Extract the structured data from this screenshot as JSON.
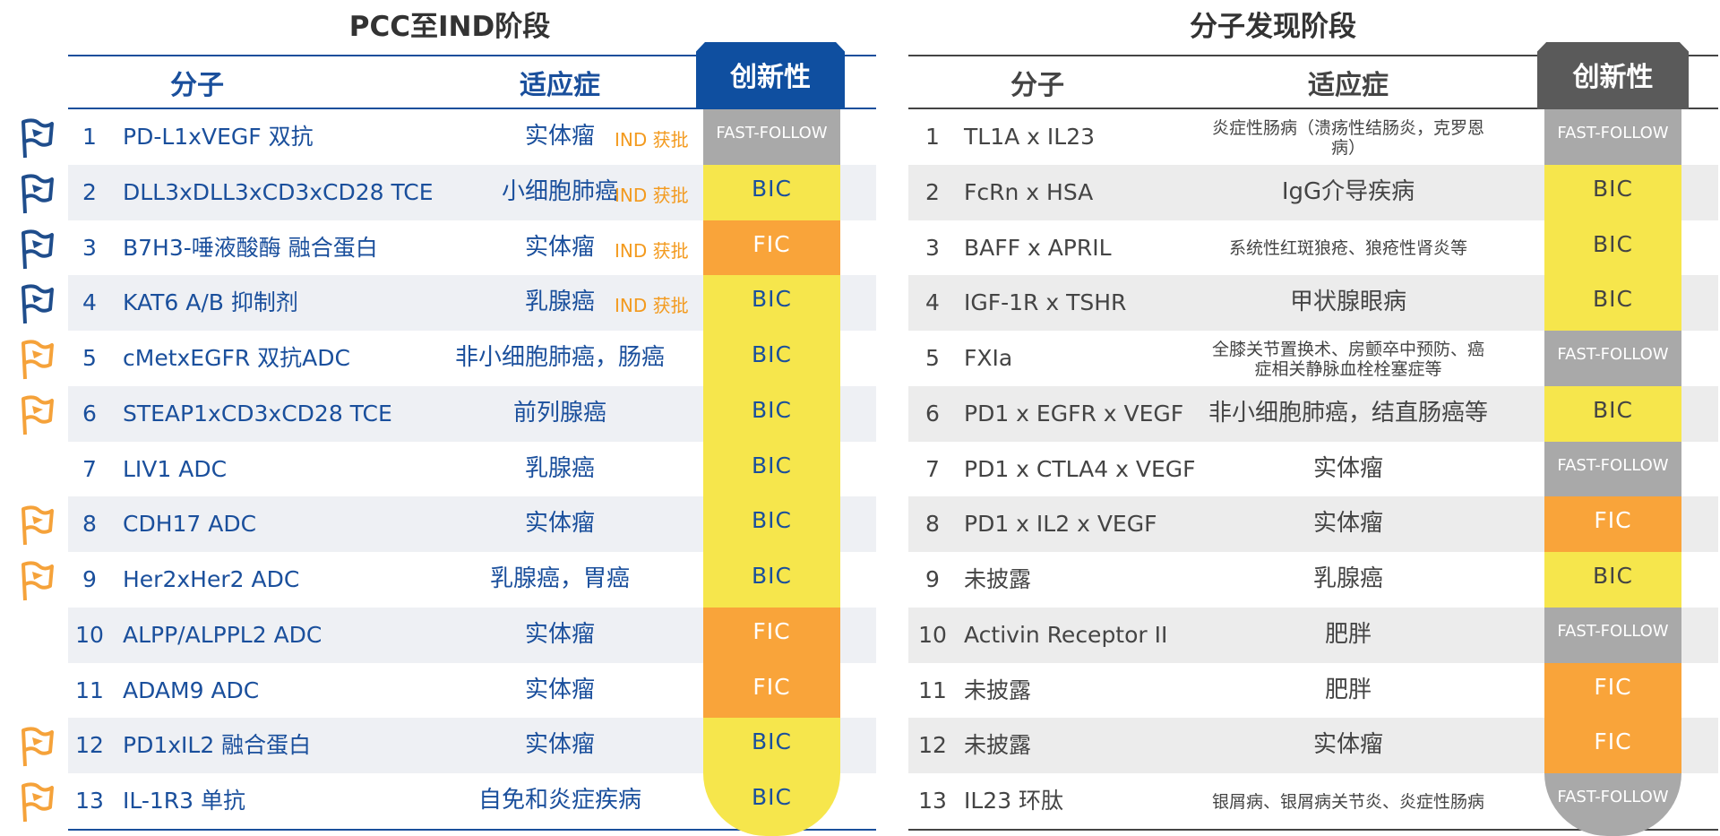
{
  "tables": [
    {
      "title": "PCC至IND阶段",
      "theme": "#1a4f9c",
      "tab": "#0f4fa0",
      "stripe": "#eef0f4",
      "headers": [
        "分子",
        "适应症",
        "创新性"
      ],
      "rows": [
        {
          "num": "1",
          "molecule": "PD-L1xVEGF 双抗",
          "indication": "实体瘤",
          "note": "IND 获批",
          "innovation": "FAST-FOLLOW",
          "innovation_color": "#a9a9a9",
          "flag": "#1f4d8c"
        },
        {
          "num": "2",
          "molecule": "DLL3xDLL3xCD3xCD28 TCE",
          "indication": "小细胞肺癌",
          "note": "IND 获批",
          "innovation": "BIC",
          "innovation_color": "#f6e64c",
          "flag": "#1f4d8c"
        },
        {
          "num": "3",
          "molecule": "B7H3-唾液酸酶 融合蛋白",
          "indication": "实体瘤",
          "note": "IND 获批",
          "innovation": "FIC",
          "innovation_color": "#f9a43a",
          "flag": "#1f4d8c"
        },
        {
          "num": "4",
          "molecule": "KAT6 A/B 抑制剂",
          "indication": "乳腺癌",
          "note": "IND 获批",
          "innovation": "BIC",
          "innovation_color": "#f6e64c",
          "flag": "#1f4d8c"
        },
        {
          "num": "5",
          "molecule": "cMetxEGFR 双抗ADC",
          "indication": "非小细胞肺癌，肠癌",
          "innovation": "BIC",
          "innovation_color": "#f6e64c",
          "flag": "#f5a23a"
        },
        {
          "num": "6",
          "molecule": "STEAP1xCD3xCD28 TCE",
          "indication": "前列腺癌",
          "innovation": "BIC",
          "innovation_color": "#f6e64c",
          "flag": "#f5a23a"
        },
        {
          "num": "7",
          "molecule": "LIV1 ADC",
          "indication": "乳腺癌",
          "innovation": "BIC",
          "innovation_color": "#f6e64c"
        },
        {
          "num": "8",
          "molecule": "CDH17 ADC",
          "indication": "实体瘤",
          "innovation": "BIC",
          "innovation_color": "#f6e64c",
          "flag": "#f5a23a"
        },
        {
          "num": "9",
          "molecule": "Her2xHer2 ADC",
          "indication": "乳腺癌，胃癌",
          "innovation": "BIC",
          "innovation_color": "#f6e64c",
          "flag": "#f5a23a"
        },
        {
          "num": "10",
          "molecule": "ALPP/ALPPL2 ADC",
          "indication": "实体瘤",
          "innovation": "FIC",
          "innovation_color": "#f9a43a"
        },
        {
          "num": "11",
          "molecule": "ADAM9 ADC",
          "indication": "实体瘤",
          "innovation": "FIC",
          "innovation_color": "#f9a43a"
        },
        {
          "num": "12",
          "molecule": "PD1xIL2 融合蛋白",
          "indication": "实体瘤",
          "innovation": "BIC",
          "innovation_color": "#f6e64c",
          "flag": "#f5a23a"
        },
        {
          "num": "13",
          "molecule": "IL-1R3 单抗",
          "indication": "自免和炎症疾病",
          "innovation": "BIC",
          "innovation_color": "#f6e64c",
          "flag": "#f5a23a"
        }
      ]
    },
    {
      "title": "分子发现阶段",
      "theme": "#444444",
      "tab": "#5a5a5a",
      "stripe": "#ececec",
      "headers": [
        "分子",
        "适应症",
        "创新性"
      ],
      "rows": [
        {
          "num": "1",
          "molecule": "TL1A x IL23",
          "indication": "炎症性肠病（溃疡性结肠炎，克罗恩病）",
          "innovation": "FAST-FOLLOW",
          "innovation_color": "#a9a9a9"
        },
        {
          "num": "2",
          "molecule": "FcRn x HSA",
          "indication": "IgG介导疾病",
          "innovation": "BIC",
          "innovation_color": "#f6e64c"
        },
        {
          "num": "3",
          "molecule": "BAFF x APRIL",
          "indication": "系统性红斑狼疮、狼疮性肾炎等",
          "innovation": "BIC",
          "innovation_color": "#f6e64c"
        },
        {
          "num": "4",
          "molecule": "IGF-1R x TSHR",
          "indication": "甲状腺眼病",
          "innovation": "BIC",
          "innovation_color": "#f6e64c"
        },
        {
          "num": "5",
          "molecule": "FXIa",
          "indication": "全膝关节置换术、房颤卒中预防、癌症相关静脉血栓栓塞症等",
          "innovation": "FAST-FOLLOW",
          "innovation_color": "#a9a9a9"
        },
        {
          "num": "6",
          "molecule": "PD1 x EGFR x VEGF",
          "indication": "非小细胞肺癌，结直肠癌等",
          "innovation": "BIC",
          "innovation_color": "#f6e64c"
        },
        {
          "num": "7",
          "molecule": "PD1 x CTLA4 x VEGF",
          "indication": "实体瘤",
          "innovation": "FAST-FOLLOW",
          "innovation_color": "#a9a9a9"
        },
        {
          "num": "8",
          "molecule": "PD1 x IL2 x VEGF",
          "indication": "实体瘤",
          "innovation": "FIC",
          "innovation_color": "#f9a43a"
        },
        {
          "num": "9",
          "molecule": "未披露",
          "indication": "乳腺癌",
          "innovation": "BIC",
          "innovation_color": "#f6e64c"
        },
        {
          "num": "10",
          "molecule": "Activin Receptor II",
          "indication": "肥胖",
          "innovation": "FAST-FOLLOW",
          "innovation_color": "#a9a9a9"
        },
        {
          "num": "11",
          "molecule": "未披露",
          "indication": "肥胖",
          "innovation": "FIC",
          "innovation_color": "#f9a43a"
        },
        {
          "num": "12",
          "molecule": "未披露",
          "indication": "实体瘤",
          "innovation": "FIC",
          "innovation_color": "#f9a43a"
        },
        {
          "num": "13",
          "molecule": "IL23 环肽",
          "indication": "银屑病、银屑病关节炎、炎症性肠病",
          "innovation": "FAST-FOLLOW",
          "innovation_color": "#a9a9a9"
        }
      ]
    }
  ]
}
